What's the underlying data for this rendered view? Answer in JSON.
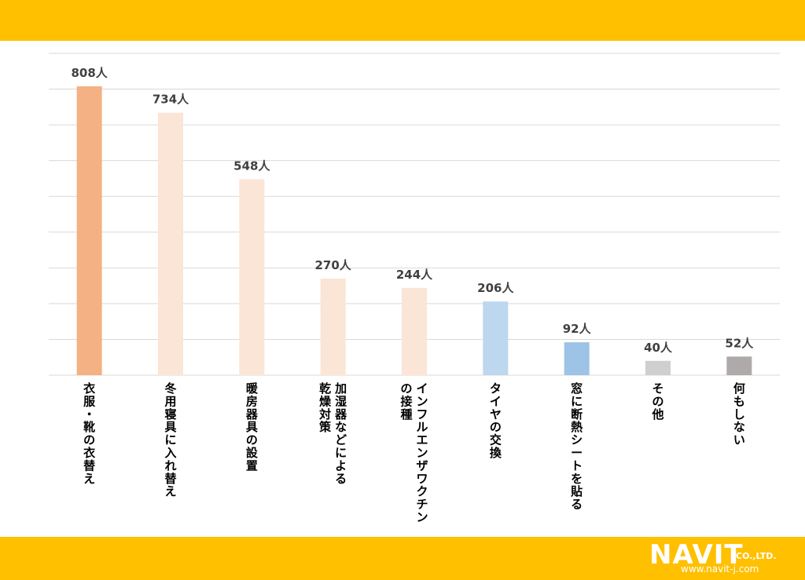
{
  "chart_data": {
    "type": "bar",
    "title": "",
    "xlabel": "",
    "ylabel": "",
    "unit": "人",
    "ylim": [
      0,
      900
    ],
    "grid": true,
    "legend": "none",
    "categories": [
      "衣服・靴の衣替え",
      "冬用寝具に入れ替え",
      "暖房器具の設置",
      "加湿器などによる\n乾燥対策",
      "インフルエンザワクチン\nの接種",
      "タイヤの交換",
      "窓に断熱シートを貼る",
      "その他",
      "何もしない"
    ],
    "values": [
      808,
      734,
      548,
      270,
      244,
      206,
      92,
      40,
      52
    ],
    "value_labels": [
      "808人",
      "734人",
      "548人",
      "270人",
      "244人",
      "206人",
      "92人",
      "40人",
      "52人"
    ],
    "colors": [
      "#f4b183",
      "#fbe5d6",
      "#fbe5d6",
      "#fbe5d6",
      "#fbe5d6",
      "#bdd7ee",
      "#9dc3e6",
      "#d0cece",
      "#aeaaaa"
    ]
  },
  "brand": {
    "logo_text": "NAVIT",
    "logo_suffix": "CO.,LTD.",
    "url": "www.navit-j.com",
    "band_color": "#ffc000"
  }
}
